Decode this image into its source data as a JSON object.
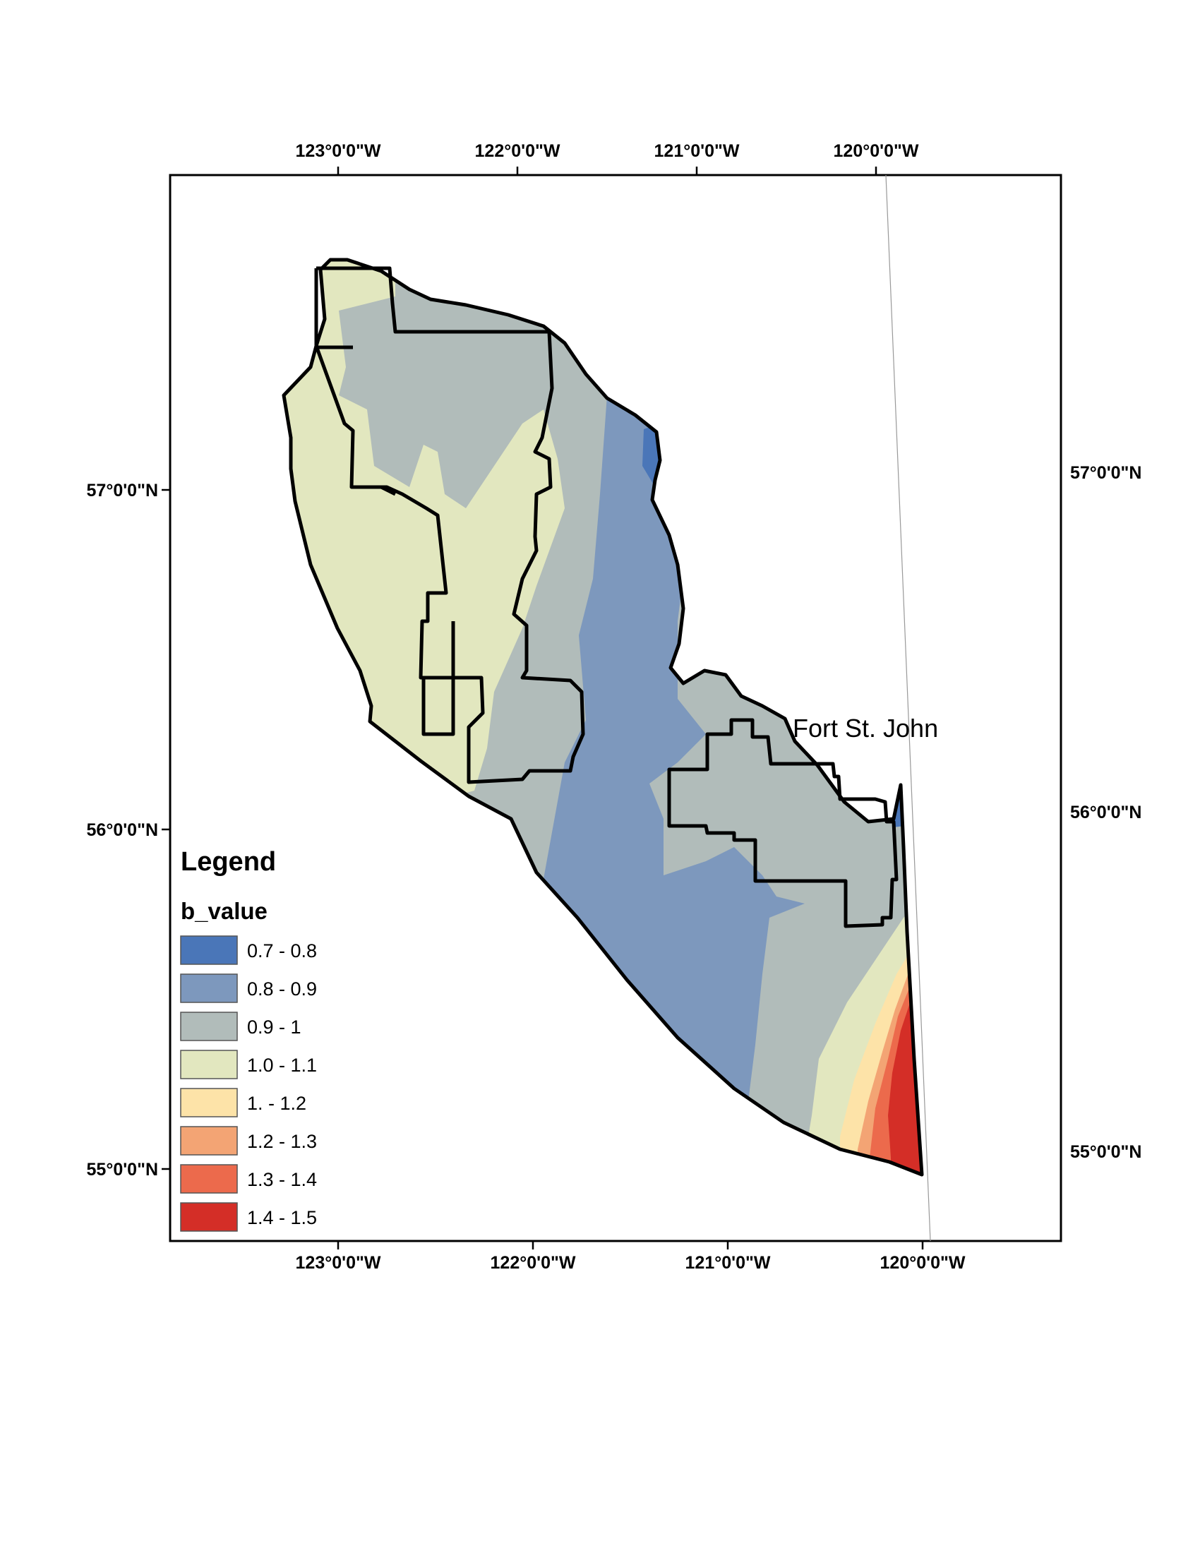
{
  "map": {
    "top_axis_labels": [
      "123°0'0\"W",
      "122°0'0\"W",
      "121°0'0\"W",
      "120°0'0\"W"
    ],
    "bottom_axis_labels": [
      "123°0'0\"W",
      "122°0'0\"W",
      "121°0'0\"W",
      "120°0'0\"W"
    ],
    "left_axis_labels": [
      "57°0'0\"N",
      "56°0'0\"N",
      "55°0'0\"N"
    ],
    "right_axis_labels": [
      "57°0'0\"N",
      "56°0'0\"N",
      "55°0'0\"N"
    ],
    "place_label": "Fort St. John"
  },
  "legend": {
    "title": "Legend",
    "field": "b_value",
    "classes": [
      {
        "label": "0.7 - 0.8",
        "color": "#4a76b8"
      },
      {
        "label": "0.8 - 0.9",
        "color": "#7d98bd"
      },
      {
        "label": "0.9 - 1",
        "color": "#b1bcba"
      },
      {
        "label": "1.0 - 1.1",
        "color": "#e2e7bf"
      },
      {
        "label": "1. - 1.2",
        "color": "#fde3a8"
      },
      {
        "label": "1.2 - 1.3",
        "color": "#f3a474"
      },
      {
        "label": "1.3 - 1.4",
        "color": "#ec6a4c"
      },
      {
        "label": "1.4 - 1.5",
        "color": "#d42e27"
      }
    ]
  }
}
